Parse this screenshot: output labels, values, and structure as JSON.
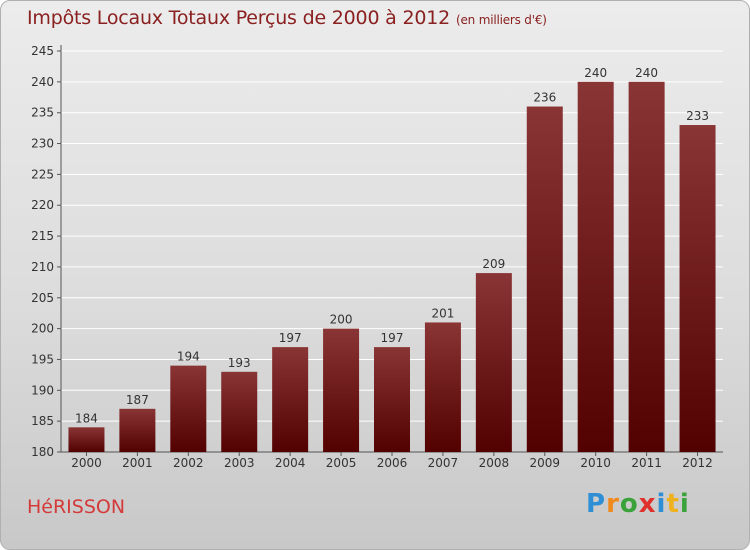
{
  "title": "Impôts Locaux Totaux Perçus de 2000 à 2012",
  "subtitle": "(en milliers d'€)",
  "city": "HéRISSON",
  "brand": [
    "P",
    "r",
    "o",
    "x",
    "i",
    "t",
    "i"
  ],
  "colors": {
    "bar_top": "#8a3535",
    "bar_bottom": "#520000",
    "title": "#8a2020",
    "city": "#d43a3a"
  },
  "chart_data": {
    "type": "bar",
    "title": "Impôts Locaux Totaux Perçus de 2000 à 2012",
    "xlabel": "",
    "ylabel": "",
    "categories": [
      "2000",
      "2001",
      "2002",
      "2003",
      "2004",
      "2005",
      "2006",
      "2007",
      "2008",
      "2009",
      "2010",
      "2011",
      "2012"
    ],
    "values": [
      184,
      187,
      194,
      193,
      197,
      200,
      197,
      201,
      209,
      236,
      240,
      240,
      233
    ],
    "ylim": [
      180,
      245
    ],
    "yticks": [
      180,
      185,
      190,
      195,
      200,
      205,
      210,
      215,
      220,
      225,
      230,
      235,
      240,
      245
    ],
    "grid": true
  }
}
